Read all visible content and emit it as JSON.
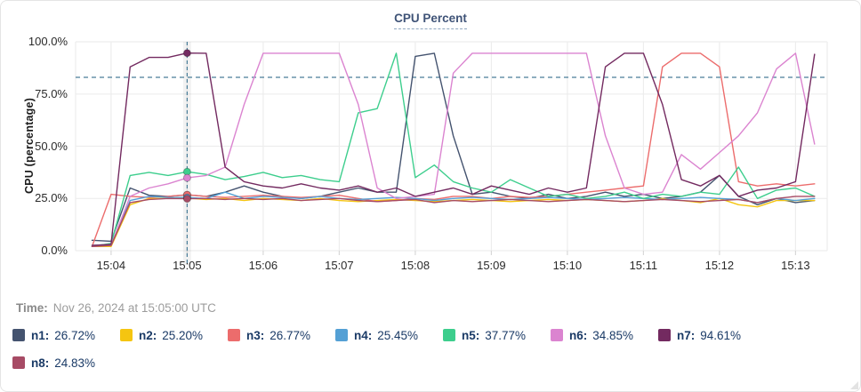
{
  "header": {
    "title": "CPU Percent"
  },
  "time_row": {
    "label": "Time:",
    "value": "Nov 26, 2024 at 15:05:00 UTC"
  },
  "colors": {
    "grid": "#ededed",
    "tick_stub": "#d8d8d8",
    "crosshair": "#4a7e99",
    "title_text": "#3f5377",
    "legend_text": "#1a3a66",
    "card_border": "#e5e5e5"
  },
  "legend": {
    "items": [
      {
        "name": "n1",
        "value": "26.72%",
        "color": "#44536f"
      },
      {
        "name": "n2",
        "value": "25.20%",
        "color": "#f5c511"
      },
      {
        "name": "n3",
        "value": "26.77%",
        "color": "#ec6c6c"
      },
      {
        "name": "n4",
        "value": "25.45%",
        "color": "#54a0d5"
      },
      {
        "name": "n5",
        "value": "37.77%",
        "color": "#3dce8d"
      },
      {
        "name": "n6",
        "value": "34.85%",
        "color": "#db84d0"
      },
      {
        "name": "n7",
        "value": "94.61%",
        "color": "#732a60"
      },
      {
        "name": "n8",
        "value": "24.83%",
        "color": "#a74b65"
      }
    ]
  },
  "chart_data": {
    "type": "line",
    "title": "CPU Percent",
    "xlabel": "",
    "ylabel": "CPU (percentage)",
    "x_unit_note": "x values are seconds after 15:00:00 UTC on Nov 26, 2024",
    "xlim": [
      212,
      805
    ],
    "ylim": [
      0,
      100
    ],
    "grid": true,
    "threshold_pct": 83,
    "crosshair": {
      "t": 300,
      "label": "15:05:00 UTC"
    },
    "y_ticks": [
      {
        "v": 0,
        "label": "0.0%"
      },
      {
        "v": 25,
        "label": "25.0%"
      },
      {
        "v": 50,
        "label": "50.0%"
      },
      {
        "v": 75,
        "label": "75.0%"
      },
      {
        "v": 100,
        "label": "100.0%"
      }
    ],
    "x_ticks": [
      {
        "t": 240,
        "label": "15:04"
      },
      {
        "t": 300,
        "label": "15:05"
      },
      {
        "t": 360,
        "label": "15:06"
      },
      {
        "t": 420,
        "label": "15:07"
      },
      {
        "t": 480,
        "label": "15:08"
      },
      {
        "t": 540,
        "label": "15:09"
      },
      {
        "t": 600,
        "label": "15:10"
      },
      {
        "t": 660,
        "label": "15:11"
      },
      {
        "t": 720,
        "label": "15:12"
      },
      {
        "t": 780,
        "label": "15:13"
      }
    ],
    "x": [
      225,
      240,
      255,
      270,
      285,
      300,
      315,
      330,
      345,
      360,
      375,
      390,
      405,
      420,
      435,
      450,
      465,
      480,
      495,
      510,
      525,
      540,
      555,
      570,
      585,
      600,
      615,
      630,
      645,
      660,
      675,
      690,
      705,
      720,
      735,
      750,
      765,
      780,
      795
    ],
    "series": [
      {
        "name": "n1",
        "color": "#44536f",
        "values": [
          5,
          4.5,
          30,
          26.5,
          26,
          26.72,
          26,
          28,
          31,
          28,
          26,
          25,
          26,
          28,
          30,
          28,
          28,
          93,
          94.5,
          55,
          27,
          28,
          26,
          25,
          27,
          25,
          26,
          28,
          26,
          27,
          25,
          26,
          28,
          36,
          26,
          22,
          25,
          23,
          24
        ]
      },
      {
        "name": "n2",
        "color": "#f5c511",
        "values": [
          2,
          2,
          22,
          25,
          25,
          25.2,
          24.5,
          25,
          24,
          25,
          24.5,
          24,
          25,
          24,
          23.5,
          24,
          24.5,
          24,
          23.5,
          24,
          24.5,
          24,
          23.5,
          24,
          24.5,
          24,
          24.5,
          24,
          23.5,
          24,
          25,
          24,
          23,
          25,
          22,
          21,
          24,
          24,
          24
        ]
      },
      {
        "name": "n3",
        "color": "#ec6c6c",
        "values": [
          2,
          27,
          26,
          25.5,
          26,
          26.77,
          26,
          25.5,
          26,
          26.5,
          26,
          25.5,
          26,
          26.5,
          25,
          23.5,
          24,
          25,
          24.5,
          26,
          26,
          25,
          26,
          25.5,
          26,
          27,
          28,
          29,
          30,
          31,
          88,
          94.5,
          94.5,
          88,
          33,
          31,
          32,
          31,
          32
        ]
      },
      {
        "name": "n4",
        "color": "#54a0d5",
        "values": [
          2.5,
          3,
          24,
          26,
          25.5,
          25.45,
          25,
          28,
          25,
          26,
          25.5,
          25,
          26,
          25,
          24.5,
          25,
          25.5,
          25,
          24,
          25,
          25.5,
          25,
          24.5,
          25,
          25.5,
          25,
          24.5,
          25,
          25.5,
          25,
          24.5,
          25,
          25.5,
          25,
          24.5,
          23,
          25,
          24,
          25
        ]
      },
      {
        "name": "n5",
        "color": "#3dce8d",
        "values": [
          2,
          3.5,
          36,
          37.5,
          36,
          37.77,
          36.5,
          34,
          35.5,
          37.5,
          35,
          36,
          34,
          33,
          66,
          68,
          94.5,
          35,
          41,
          33,
          30,
          28,
          34,
          30,
          26,
          27,
          25,
          26,
          28,
          25,
          27,
          26,
          28,
          27,
          40,
          25,
          29,
          30,
          26
        ]
      },
      {
        "name": "n6",
        "color": "#db84d0",
        "values": [
          2,
          2.5,
          26,
          30,
          32,
          34.85,
          36,
          40,
          70,
          94.5,
          94.5,
          94.5,
          94.5,
          94.5,
          70,
          30,
          25,
          26,
          27,
          85,
          94.5,
          94.5,
          94.5,
          94.5,
          94.5,
          94.5,
          94.5,
          55,
          30,
          27,
          28,
          46,
          39,
          47,
          55,
          66,
          87,
          94.5,
          51
        ]
      },
      {
        "name": "n7",
        "color": "#732a60",
        "values": [
          2.5,
          3,
          88,
          92.5,
          92.5,
          94.61,
          94.5,
          40,
          33,
          31,
          30,
          32,
          30,
          29,
          31,
          28,
          30,
          26,
          28,
          30,
          27,
          31,
          29,
          27,
          30,
          28,
          30,
          88,
          94.5,
          94.5,
          70,
          34,
          31,
          36,
          26,
          29,
          30,
          33,
          94
        ]
      },
      {
        "name": "n8",
        "color": "#a74b65",
        "values": [
          2,
          2.5,
          23,
          24.5,
          25,
          24.83,
          25,
          24.5,
          25,
          24.5,
          25,
          24,
          24.5,
          25,
          24,
          23.5,
          24,
          24.5,
          23,
          24,
          23.5,
          24,
          24.5,
          24,
          23.5,
          24,
          24.5,
          24,
          23.5,
          24,
          24.5,
          24,
          23.5,
          24,
          24.5,
          23,
          25,
          26,
          26
        ]
      }
    ]
  }
}
